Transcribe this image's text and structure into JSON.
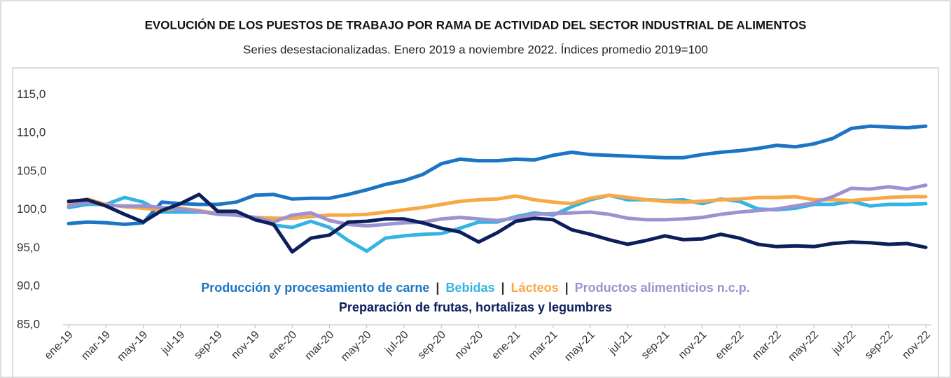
{
  "chart_data": {
    "type": "line",
    "title": "EVOLUCIÓN DE LOS PUESTOS DE TRABAJO POR RAMA DE ACTIVIDAD DEL SECTOR INDUSTRIAL DE ALIMENTOS",
    "subtitle": "Series desestacionalizadas. Enero 2019 a noviembre 2022. Índices promedio 2019=100",
    "legend_separator": "|",
    "categories": [
      "ene-19",
      null,
      "mar-19",
      null,
      "may-19",
      null,
      "jul-19",
      null,
      "sep-19",
      null,
      "nov-19",
      null,
      "ene-20",
      null,
      "mar-20",
      null,
      "may-20",
      null,
      "jul-20",
      null,
      "sep-20",
      null,
      "nov-20",
      null,
      "ene-21",
      null,
      "mar-21",
      null,
      "may-21",
      null,
      "jul-21",
      null,
      "sep-21",
      null,
      "nov-21",
      null,
      "ene-22",
      null,
      "mar-22",
      null,
      "may-22",
      null,
      "jul-22",
      null,
      "sep-22",
      null,
      "nov-22"
    ],
    "ylim": [
      85,
      118.5
    ],
    "yticks": [
      {
        "value": 85,
        "label": "85,0"
      },
      {
        "value": 90,
        "label": "90,0"
      },
      {
        "value": 95,
        "label": "95,0"
      },
      {
        "value": 100,
        "label": "100,0"
      },
      {
        "value": 105,
        "label": "105,0"
      },
      {
        "value": 110,
        "label": "110,0"
      },
      {
        "value": 115,
        "label": "115,0"
      }
    ],
    "series": [
      {
        "name": "Producción y procesamiento de carne",
        "color": "#1b75c4",
        "values": [
          98.2,
          98.4,
          98.3,
          98.1,
          98.3,
          101.0,
          100.8,
          100.7,
          100.7,
          101.0,
          101.9,
          102.0,
          101.4,
          101.5,
          101.5,
          102.0,
          102.6,
          103.3,
          103.8,
          104.6,
          106.0,
          106.6,
          106.4,
          106.4,
          106.6,
          106.5,
          107.1,
          107.5,
          107.2,
          107.1,
          107.0,
          106.9,
          106.8,
          106.8,
          107.2,
          107.5,
          107.7,
          108.0,
          108.4,
          108.2,
          108.6,
          109.3,
          110.6,
          110.9,
          110.8,
          110.7,
          110.9
        ]
      },
      {
        "name": "Bebidas",
        "color": "#34b4e4",
        "values": [
          100.3,
          100.7,
          100.7,
          101.6,
          101.0,
          99.7,
          99.7,
          99.7,
          99.6,
          99.3,
          99.0,
          98.0,
          97.7,
          98.5,
          97.7,
          96.0,
          94.6,
          96.3,
          96.6,
          96.8,
          96.9,
          97.6,
          98.4,
          98.4,
          99.1,
          99.6,
          99.3,
          100.4,
          101.3,
          101.9,
          101.3,
          101.3,
          101.2,
          101.3,
          100.8,
          101.4,
          101.1,
          100.1,
          100.0,
          100.2,
          100.7,
          100.7,
          101.1,
          100.5,
          100.7,
          100.7,
          100.8
        ]
      },
      {
        "name": "Lácteos",
        "color": "#f9a846",
        "values": [
          100.8,
          101.4,
          100.7,
          100.4,
          100.2,
          100.0,
          100.2,
          99.9,
          99.5,
          99.3,
          99.0,
          98.9,
          98.9,
          99.1,
          99.3,
          99.3,
          99.4,
          99.7,
          100.0,
          100.3,
          100.7,
          101.1,
          101.3,
          101.4,
          101.8,
          101.3,
          101.0,
          100.8,
          101.5,
          101.9,
          101.6,
          101.3,
          101.1,
          101.0,
          101.1,
          101.3,
          101.4,
          101.6,
          101.6,
          101.7,
          101.3,
          101.3,
          101.2,
          101.4,
          101.6,
          101.7,
          101.7
        ]
      },
      {
        "name": "Productos alimenticios n.c.p.",
        "color": "#9d92cf",
        "values": [
          100.5,
          101.0,
          100.6,
          100.5,
          100.5,
          100.3,
          100.1,
          99.8,
          99.4,
          99.3,
          99.0,
          98.4,
          99.3,
          99.6,
          98.6,
          98.1,
          97.9,
          98.1,
          98.3,
          98.4,
          98.8,
          99.0,
          98.8,
          98.6,
          98.9,
          99.4,
          99.5,
          99.6,
          99.7,
          99.4,
          98.9,
          98.7,
          98.7,
          98.8,
          99.0,
          99.4,
          99.7,
          99.9,
          100.1,
          100.5,
          100.9,
          101.7,
          102.8,
          102.7,
          103.0,
          102.7,
          103.2
        ]
      },
      {
        "name": "Preparación de frutas, hortalizas y legumbres",
        "color": "#0c1e5b",
        "values": [
          101.1,
          101.3,
          100.5,
          99.4,
          98.4,
          99.9,
          100.8,
          102.0,
          99.8,
          99.8,
          98.7,
          98.1,
          94.5,
          96.3,
          96.7,
          98.4,
          98.5,
          98.8,
          98.8,
          98.3,
          97.6,
          97.1,
          95.8,
          97.0,
          98.5,
          98.9,
          98.7,
          97.4,
          96.8,
          96.1,
          95.5,
          96.0,
          96.6,
          96.1,
          96.2,
          96.8,
          96.3,
          95.5,
          95.2,
          95.3,
          95.2,
          95.6,
          95.8,
          95.7,
          95.5,
          95.6,
          95.1
        ]
      }
    ]
  }
}
